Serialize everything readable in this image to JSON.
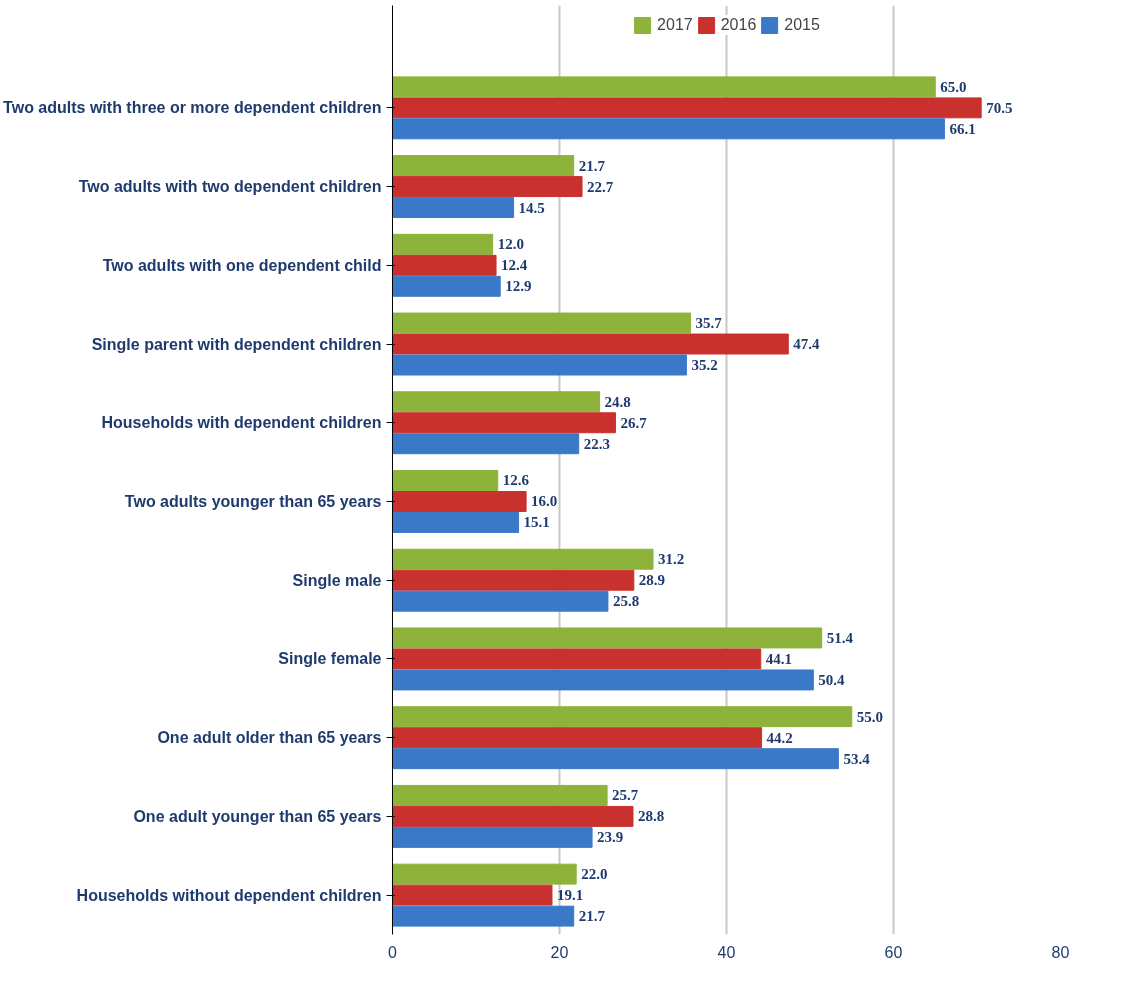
{
  "chart_data": {
    "type": "bar",
    "orientation": "horizontal",
    "categories": [
      "Two adults with three or more dependent children",
      "Two adults with two dependent children",
      "Two adults with one dependent child",
      "Single parent with dependent children",
      "Households with dependent children",
      "Two adults younger than 65 years",
      "Single male",
      "Single female",
      "One adult older than 65 years",
      "One adult younger than 65 years",
      "Households without dependent children"
    ],
    "series": [
      {
        "name": "2017",
        "color": "#8db33a",
        "values": [
          65,
          21.7,
          12,
          35.7,
          24.8,
          12.6,
          31.2,
          51.4,
          55,
          25.7,
          22
        ],
        "value_labels": [
          "65.0",
          "21.7",
          "12.0",
          "35.7",
          "24.8",
          "12.6",
          "31.2",
          "51.4",
          "55.0",
          "25.7",
          "22.0"
        ]
      },
      {
        "name": "2016",
        "color": "#c8312e",
        "values": [
          70.5,
          22.7,
          12.4,
          47.4,
          26.7,
          16,
          28.9,
          44.1,
          44.2,
          28.8,
          19.1
        ],
        "value_labels": [
          "70.5",
          "22.7",
          "12.4",
          "47.4",
          "26.7",
          "16.0",
          "28.9",
          "44.1",
          "44.2",
          "28.8",
          "19.1"
        ]
      },
      {
        "name": "2015",
        "color": "#3a78c8",
        "values": [
          66.1,
          14.5,
          12.9,
          35.2,
          22.3,
          15.1,
          25.8,
          50.4,
          53.4,
          23.9,
          21.7
        ],
        "value_labels": [
          "66.1",
          "14.5",
          "12.9",
          "35.2",
          "22.3",
          "15.1",
          "25.8",
          "50.4",
          "53.4",
          "23.9",
          "21.7"
        ]
      }
    ],
    "xlim": [
      0,
      80
    ],
    "xticks": [
      0,
      20,
      40,
      60,
      80
    ],
    "grid": "x",
    "legend": "top"
  }
}
